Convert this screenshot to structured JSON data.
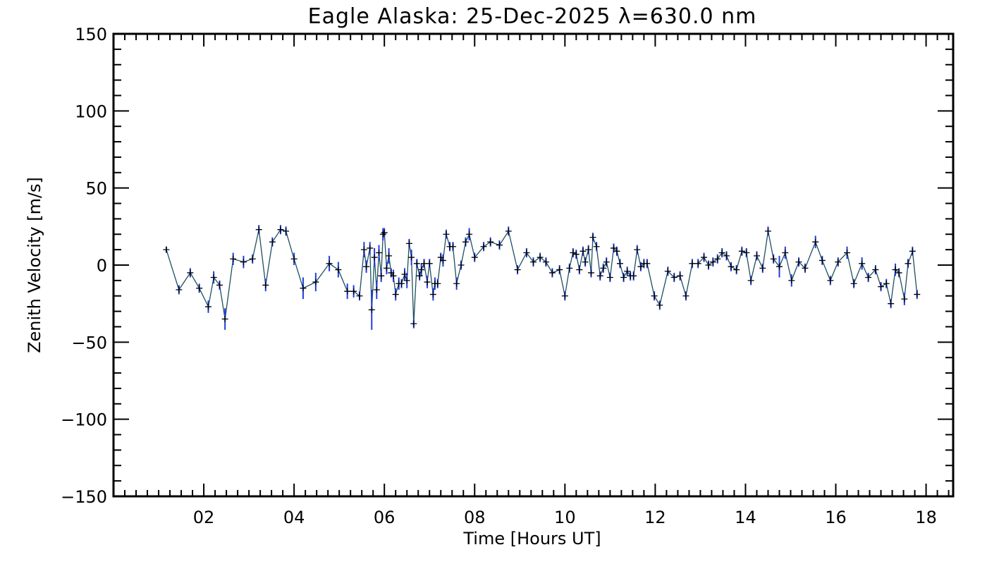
{
  "chart_data": {
    "type": "line",
    "title": "Eagle Alaska: 25-Dec-2025 λ=630.0 nm",
    "xlabel": "Time [Hours UT]",
    "ylabel": "Zenith Velocity [m/s]",
    "xlim": [
      0,
      18.6
    ],
    "ylim": [
      -150,
      150
    ],
    "x_ticks": [
      2,
      4,
      6,
      8,
      10,
      12,
      14,
      16,
      18
    ],
    "x_tick_labels": [
      "02",
      "04",
      "06",
      "08",
      "10",
      "12",
      "14",
      "16",
      "18"
    ],
    "y_ticks": [
      -150,
      -100,
      -50,
      0,
      50,
      100,
      150
    ],
    "y_tick_labels": [
      "−150",
      "−100",
      "−50",
      "0",
      "50",
      "100",
      "150"
    ],
    "grid": false,
    "marker": "+",
    "line_color": "#1f4f5f",
    "errorbar_color": "#1f3de0",
    "series": [
      {
        "points": [
          {
            "x": 1.17,
            "y": 10,
            "err": 2
          },
          {
            "x": 1.45,
            "y": -16,
            "err": 3
          },
          {
            "x": 1.7,
            "y": -5,
            "err": 3
          },
          {
            "x": 1.9,
            "y": -15,
            "err": 3
          },
          {
            "x": 2.1,
            "y": -27,
            "err": 4
          },
          {
            "x": 2.22,
            "y": -8,
            "err": 4
          },
          {
            "x": 2.35,
            "y": -13,
            "err": 3
          },
          {
            "x": 2.47,
            "y": -35,
            "err": 7
          },
          {
            "x": 2.65,
            "y": 4,
            "err": 4
          },
          {
            "x": 2.88,
            "y": 2,
            "err": 4
          },
          {
            "x": 3.08,
            "y": 4,
            "err": 3
          },
          {
            "x": 3.22,
            "y": 23,
            "err": 3
          },
          {
            "x": 3.37,
            "y": -13,
            "err": 4
          },
          {
            "x": 3.52,
            "y": 15,
            "err": 3
          },
          {
            "x": 3.7,
            "y": 23,
            "err": 3
          },
          {
            "x": 3.82,
            "y": 22,
            "err": 3
          },
          {
            "x": 4.0,
            "y": 4,
            "err": 4
          },
          {
            "x": 4.2,
            "y": -15,
            "err": 7
          },
          {
            "x": 4.48,
            "y": -11,
            "err": 6
          },
          {
            "x": 4.78,
            "y": 1,
            "err": 5
          },
          {
            "x": 4.98,
            "y": -3,
            "err": 5
          },
          {
            "x": 5.18,
            "y": -17,
            "err": 5
          },
          {
            "x": 5.32,
            "y": -17,
            "err": 4
          },
          {
            "x": 5.45,
            "y": -20,
            "err": 3
          },
          {
            "x": 5.55,
            "y": 10,
            "err": 5
          },
          {
            "x": 5.6,
            "y": -1,
            "err": 4
          },
          {
            "x": 5.68,
            "y": 11,
            "err": 4
          },
          {
            "x": 5.72,
            "y": -29,
            "err": 13
          },
          {
            "x": 5.78,
            "y": 5,
            "err": 6
          },
          {
            "x": 5.83,
            "y": -16,
            "err": 6
          },
          {
            "x": 5.88,
            "y": 8,
            "err": 5
          },
          {
            "x": 5.93,
            "y": -7,
            "err": 4
          },
          {
            "x": 5.97,
            "y": 20,
            "err": 4
          },
          {
            "x": 6.0,
            "y": 21,
            "err": 3
          },
          {
            "x": 6.05,
            "y": -2,
            "err": 4
          },
          {
            "x": 6.1,
            "y": 6,
            "err": 5
          },
          {
            "x": 6.15,
            "y": -5,
            "err": 3
          },
          {
            "x": 6.2,
            "y": -7,
            "err": 4
          },
          {
            "x": 6.25,
            "y": -19,
            "err": 4
          },
          {
            "x": 6.32,
            "y": -12,
            "err": 4
          },
          {
            "x": 6.38,
            "y": -12,
            "err": 3
          },
          {
            "x": 6.45,
            "y": -6,
            "err": 4
          },
          {
            "x": 6.5,
            "y": -10,
            "err": 5
          },
          {
            "x": 6.55,
            "y": 14,
            "err": 3
          },
          {
            "x": 6.6,
            "y": 5,
            "err": 5
          },
          {
            "x": 6.65,
            "y": -38,
            "err": 3
          },
          {
            "x": 6.72,
            "y": 1,
            "err": 3
          },
          {
            "x": 6.78,
            "y": -7,
            "err": 3
          },
          {
            "x": 6.82,
            "y": -3,
            "err": 4
          },
          {
            "x": 6.88,
            "y": 1,
            "err": 3
          },
          {
            "x": 6.95,
            "y": -11,
            "err": 4
          },
          {
            "x": 7.0,
            "y": 1,
            "err": 3
          },
          {
            "x": 7.08,
            "y": -19,
            "err": 4
          },
          {
            "x": 7.12,
            "y": -12,
            "err": 4
          },
          {
            "x": 7.18,
            "y": -12,
            "err": 3
          },
          {
            "x": 7.25,
            "y": 5,
            "err": 3
          },
          {
            "x": 7.3,
            "y": 3,
            "err": 4
          },
          {
            "x": 7.37,
            "y": 20,
            "err": 3
          },
          {
            "x": 7.45,
            "y": 12,
            "err": 3
          },
          {
            "x": 7.52,
            "y": 12,
            "err": 3
          },
          {
            "x": 7.6,
            "y": -12,
            "err": 4
          },
          {
            "x": 7.7,
            "y": 0,
            "err": 3
          },
          {
            "x": 7.8,
            "y": 15,
            "err": 3
          },
          {
            "x": 7.88,
            "y": 20,
            "err": 4
          },
          {
            "x": 8.0,
            "y": 5,
            "err": 3
          },
          {
            "x": 8.2,
            "y": 12,
            "err": 3
          },
          {
            "x": 8.35,
            "y": 15,
            "err": 3
          },
          {
            "x": 8.55,
            "y": 13,
            "err": 3
          },
          {
            "x": 8.75,
            "y": 22,
            "err": 3
          },
          {
            "x": 8.95,
            "y": -3,
            "err": 3
          },
          {
            "x": 9.15,
            "y": 8,
            "err": 3
          },
          {
            "x": 9.3,
            "y": 2,
            "err": 3
          },
          {
            "x": 9.45,
            "y": 5,
            "err": 3
          },
          {
            "x": 9.58,
            "y": 2,
            "err": 3
          },
          {
            "x": 9.72,
            "y": -5,
            "err": 3
          },
          {
            "x": 9.88,
            "y": -3,
            "err": 3
          },
          {
            "x": 10.0,
            "y": -20,
            "err": 3
          },
          {
            "x": 10.1,
            "y": -2,
            "err": 3
          },
          {
            "x": 10.18,
            "y": 8,
            "err": 3
          },
          {
            "x": 10.25,
            "y": 7,
            "err": 3
          },
          {
            "x": 10.32,
            "y": -3,
            "err": 3
          },
          {
            "x": 10.4,
            "y": 9,
            "err": 3
          },
          {
            "x": 10.45,
            "y": 2,
            "err": 3
          },
          {
            "x": 10.52,
            "y": 10,
            "err": 3
          },
          {
            "x": 10.58,
            "y": -5,
            "err": 3
          },
          {
            "x": 10.62,
            "y": 18,
            "err": 3
          },
          {
            "x": 10.7,
            "y": 12,
            "err": 3
          },
          {
            "x": 10.78,
            "y": -7,
            "err": 3
          },
          {
            "x": 10.85,
            "y": -2,
            "err": 3
          },
          {
            "x": 10.92,
            "y": 2,
            "err": 3
          },
          {
            "x": 11.0,
            "y": -8,
            "err": 3
          },
          {
            "x": 11.08,
            "y": 11,
            "err": 3
          },
          {
            "x": 11.15,
            "y": 9,
            "err": 3
          },
          {
            "x": 11.22,
            "y": 1,
            "err": 3
          },
          {
            "x": 11.3,
            "y": -8,
            "err": 3
          },
          {
            "x": 11.38,
            "y": -4,
            "err": 3
          },
          {
            "x": 11.45,
            "y": -7,
            "err": 3
          },
          {
            "x": 11.52,
            "y": -7,
            "err": 3
          },
          {
            "x": 11.6,
            "y": 10,
            "err": 3
          },
          {
            "x": 11.68,
            "y": -1,
            "err": 3
          },
          {
            "x": 11.75,
            "y": 1,
            "err": 3
          },
          {
            "x": 11.82,
            "y": 1,
            "err": 3
          },
          {
            "x": 11.98,
            "y": -20,
            "err": 3
          },
          {
            "x": 12.1,
            "y": -26,
            "err": 3
          },
          {
            "x": 12.28,
            "y": -4,
            "err": 3
          },
          {
            "x": 12.42,
            "y": -8,
            "err": 3
          },
          {
            "x": 12.55,
            "y": -7,
            "err": 3
          },
          {
            "x": 12.68,
            "y": -20,
            "err": 3
          },
          {
            "x": 12.82,
            "y": 1,
            "err": 3
          },
          {
            "x": 12.95,
            "y": 1,
            "err": 3
          },
          {
            "x": 13.08,
            "y": 5,
            "err": 3
          },
          {
            "x": 13.18,
            "y": 0,
            "err": 3
          },
          {
            "x": 13.28,
            "y": 2,
            "err": 3
          },
          {
            "x": 13.38,
            "y": 4,
            "err": 3
          },
          {
            "x": 13.48,
            "y": 8,
            "err": 3
          },
          {
            "x": 13.58,
            "y": 6,
            "err": 3
          },
          {
            "x": 13.68,
            "y": -1,
            "err": 3
          },
          {
            "x": 13.8,
            "y": -3,
            "err": 3
          },
          {
            "x": 13.92,
            "y": 9,
            "err": 3
          },
          {
            "x": 14.02,
            "y": 8,
            "err": 3
          },
          {
            "x": 14.12,
            "y": -10,
            "err": 3
          },
          {
            "x": 14.25,
            "y": 6,
            "err": 3
          },
          {
            "x": 14.38,
            "y": -2,
            "err": 3
          },
          {
            "x": 14.5,
            "y": 22,
            "err": 3
          },
          {
            "x": 14.62,
            "y": 4,
            "err": 3
          },
          {
            "x": 14.75,
            "y": -1,
            "err": 7
          },
          {
            "x": 14.88,
            "y": 8,
            "err": 4
          },
          {
            "x": 15.02,
            "y": -10,
            "err": 4
          },
          {
            "x": 15.18,
            "y": 2,
            "err": 3
          },
          {
            "x": 15.32,
            "y": -2,
            "err": 3
          },
          {
            "x": 15.55,
            "y": 15,
            "err": 4
          },
          {
            "x": 15.7,
            "y": 3,
            "err": 3
          },
          {
            "x": 15.88,
            "y": -10,
            "err": 3
          },
          {
            "x": 16.05,
            "y": 2,
            "err": 3
          },
          {
            "x": 16.25,
            "y": 8,
            "err": 4
          },
          {
            "x": 16.4,
            "y": -12,
            "err": 3
          },
          {
            "x": 16.58,
            "y": 1,
            "err": 4
          },
          {
            "x": 16.72,
            "y": -8,
            "err": 3
          },
          {
            "x": 16.88,
            "y": -3,
            "err": 3
          },
          {
            "x": 17.0,
            "y": -14,
            "err": 3
          },
          {
            "x": 17.12,
            "y": -12,
            "err": 3
          },
          {
            "x": 17.22,
            "y": -25,
            "err": 3
          },
          {
            "x": 17.32,
            "y": -3,
            "err": 4
          },
          {
            "x": 17.4,
            "y": -5,
            "err": 3
          },
          {
            "x": 17.52,
            "y": -22,
            "err": 4
          },
          {
            "x": 17.6,
            "y": 1,
            "err": 3
          },
          {
            "x": 17.7,
            "y": 9,
            "err": 3
          },
          {
            "x": 17.8,
            "y": -19,
            "err": 3
          }
        ]
      }
    ]
  }
}
